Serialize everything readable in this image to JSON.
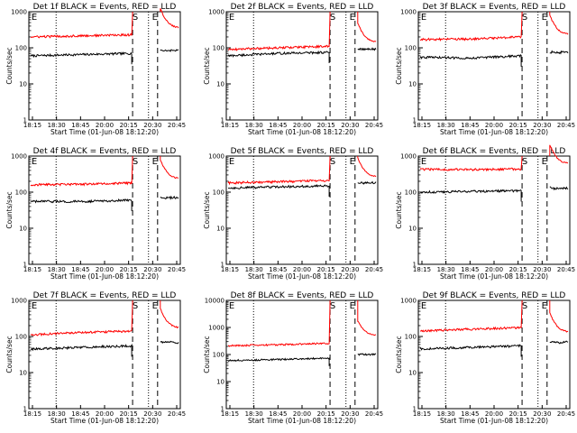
{
  "figure": {
    "title_template": "Det {n}f BLACK = Events, RED = LLD",
    "xlabel": "Start Time (01-Jun-08 18:12:20)",
    "ylabel": "Counts/sec",
    "x_ticks": [
      "18:15",
      "18:30",
      "18:45",
      "20:00",
      "20:15",
      "20:30",
      "20:45"
    ],
    "y_ticks": [
      "1",
      "10",
      "100",
      "1000"
    ],
    "y_ticks_big": [
      "1",
      "10",
      "100",
      "1000",
      "10000"
    ],
    "markers": {
      "start": "S",
      "end": "E"
    },
    "colors": {
      "events": "#000000",
      "lld": "#ff0000"
    }
  },
  "chart_data": [
    {
      "type": "line",
      "detector": "1",
      "title": "Det 1f BLACK = Events, RED = LLD",
      "xlabel": "Start Time (01-Jun-08 18:12:20)",
      "ylabel": "Counts/sec",
      "y_scale": "log",
      "ylim": [
        1,
        1000
      ],
      "x_ticks": [
        "18:15",
        "18:30",
        "18:45",
        "20:00",
        "20:15",
        "20:30",
        "20:45"
      ],
      "series": [
        {
          "name": "Events",
          "color": "#000000",
          "level_start": 60,
          "level_mid": 65,
          "level_end": 70,
          "after_gap": 85
        },
        {
          "name": "LLD",
          "color": "#ff0000",
          "level_start": 200,
          "level_mid": 215,
          "level_end": 230,
          "after_gap": 350
        }
      ]
    },
    {
      "type": "line",
      "detector": "2",
      "title": "Det 2f BLACK = Events, RED = LLD",
      "xlabel": "Start Time (01-Jun-08 18:12:20)",
      "ylabel": "Counts/sec",
      "y_scale": "log",
      "ylim": [
        1,
        1000
      ],
      "x_ticks": [
        "18:15",
        "18:30",
        "18:45",
        "20:00",
        "20:15",
        "20:30",
        "20:45"
      ],
      "series": [
        {
          "name": "Events",
          "color": "#000000",
          "level_start": 60,
          "level_mid": 70,
          "level_end": 75,
          "after_gap": 90
        },
        {
          "name": "LLD",
          "color": "#ff0000",
          "level_start": 90,
          "level_mid": 100,
          "level_end": 110,
          "after_gap": 140
        }
      ]
    },
    {
      "type": "line",
      "detector": "3",
      "title": "Det 3f BLACK = Events, RED = LLD",
      "xlabel": "Start Time (01-Jun-08 18:12:20)",
      "ylabel": "Counts/sec",
      "y_scale": "log",
      "ylim": [
        1,
        1000
      ],
      "x_ticks": [
        "18:15",
        "18:30",
        "18:45",
        "20:00",
        "20:15",
        "20:30",
        "20:45"
      ],
      "series": [
        {
          "name": "Events",
          "color": "#000000",
          "level_start": 55,
          "level_mid": 52,
          "level_end": 60,
          "after_gap": 75
        },
        {
          "name": "LLD",
          "color": "#ff0000",
          "level_start": 170,
          "level_mid": 175,
          "level_end": 200,
          "after_gap": 230
        }
      ]
    },
    {
      "type": "line",
      "detector": "4",
      "title": "Det 4f BLACK = Events, RED = LLD",
      "xlabel": "Start Time (01-Jun-08 18:12:20)",
      "ylabel": "Counts/sec",
      "y_scale": "log",
      "ylim": [
        1,
        1000
      ],
      "x_ticks": [
        "18:15",
        "18:30",
        "18:45",
        "20:00",
        "20:15",
        "20:30",
        "20:45"
      ],
      "series": [
        {
          "name": "Events",
          "color": "#000000",
          "level_start": 55,
          "level_mid": 55,
          "level_end": 60,
          "after_gap": 70
        },
        {
          "name": "LLD",
          "color": "#ff0000",
          "level_start": 160,
          "level_mid": 165,
          "level_end": 180,
          "after_gap": 230
        }
      ]
    },
    {
      "type": "line",
      "detector": "5",
      "title": "Det 5f BLACK = Events, RED = LLD",
      "xlabel": "Start Time (01-Jun-08 18:12:20)",
      "ylabel": "Counts/sec",
      "y_scale": "log",
      "ylim": [
        1,
        1000
      ],
      "x_ticks": [
        "18:15",
        "18:30",
        "18:45",
        "20:00",
        "20:15",
        "20:30",
        "20:45"
      ],
      "series": [
        {
          "name": "Events",
          "color": "#000000",
          "level_start": 130,
          "level_mid": 140,
          "level_end": 150,
          "after_gap": 180
        },
        {
          "name": "LLD",
          "color": "#ff0000",
          "level_start": 180,
          "level_mid": 195,
          "level_end": 210,
          "after_gap": 260
        }
      ]
    },
    {
      "type": "line",
      "detector": "6",
      "title": "Det 6f BLACK = Events, RED = LLD",
      "xlabel": "Start Time (01-Jun-08 18:12:20)",
      "ylabel": "Counts/sec",
      "y_scale": "log",
      "ylim": [
        1,
        1000
      ],
      "x_ticks": [
        "18:15",
        "18:30",
        "18:45",
        "20:00",
        "20:15",
        "20:30",
        "20:45"
      ],
      "series": [
        {
          "name": "Events",
          "color": "#000000",
          "level_start": 100,
          "level_mid": 105,
          "level_end": 110,
          "after_gap": 130
        },
        {
          "name": "LLD",
          "color": "#ff0000",
          "level_start": 430,
          "level_mid": 420,
          "level_end": 440,
          "after_gap": 600
        }
      ]
    },
    {
      "type": "line",
      "detector": "7",
      "title": "Det 7f BLACK = Events, RED = LLD",
      "xlabel": "Start Time (01-Jun-08 18:12:20)",
      "ylabel": "Counts/sec",
      "y_scale": "log",
      "ylim": [
        1,
        1000
      ],
      "x_ticks": [
        "18:15",
        "18:30",
        "18:45",
        "20:00",
        "20:15",
        "20:30",
        "20:45"
      ],
      "series": [
        {
          "name": "Events",
          "color": "#000000",
          "level_start": 45,
          "level_mid": 50,
          "level_end": 55,
          "after_gap": 70
        },
        {
          "name": "LLD",
          "color": "#ff0000",
          "level_start": 110,
          "level_mid": 130,
          "level_end": 140,
          "after_gap": 170
        }
      ]
    },
    {
      "type": "line",
      "detector": "8",
      "title": "Det 8f BLACK = Events, RED = LLD",
      "xlabel": "Start Time (01-Jun-08 18:12:20)",
      "ylabel": "Counts/sec",
      "y_scale": "log",
      "ylim": [
        1,
        10000
      ],
      "x_ticks": [
        "18:15",
        "18:30",
        "18:45",
        "20:00",
        "20:15",
        "20:30",
        "20:45"
      ],
      "series": [
        {
          "name": "Events",
          "color": "#000000",
          "level_start": 60,
          "level_mid": 65,
          "level_end": 75,
          "after_gap": 100
        },
        {
          "name": "LLD",
          "color": "#ff0000",
          "level_start": 210,
          "level_mid": 230,
          "level_end": 260,
          "after_gap": 500
        }
      ]
    },
    {
      "type": "line",
      "detector": "9",
      "title": "Det 9f BLACK = Events, RED = LLD",
      "xlabel": "Start Time (01-Jun-08 18:12:20)",
      "ylabel": "Counts/sec",
      "y_scale": "log",
      "ylim": [
        1,
        1000
      ],
      "x_ticks": [
        "18:15",
        "18:30",
        "18:45",
        "20:00",
        "20:15",
        "20:30",
        "20:45"
      ],
      "series": [
        {
          "name": "Events",
          "color": "#000000",
          "level_start": 45,
          "level_mid": 50,
          "level_end": 55,
          "after_gap": 70
        },
        {
          "name": "LLD",
          "color": "#ff0000",
          "level_start": 140,
          "level_mid": 160,
          "level_end": 175,
          "after_gap": 130
        }
      ]
    }
  ]
}
